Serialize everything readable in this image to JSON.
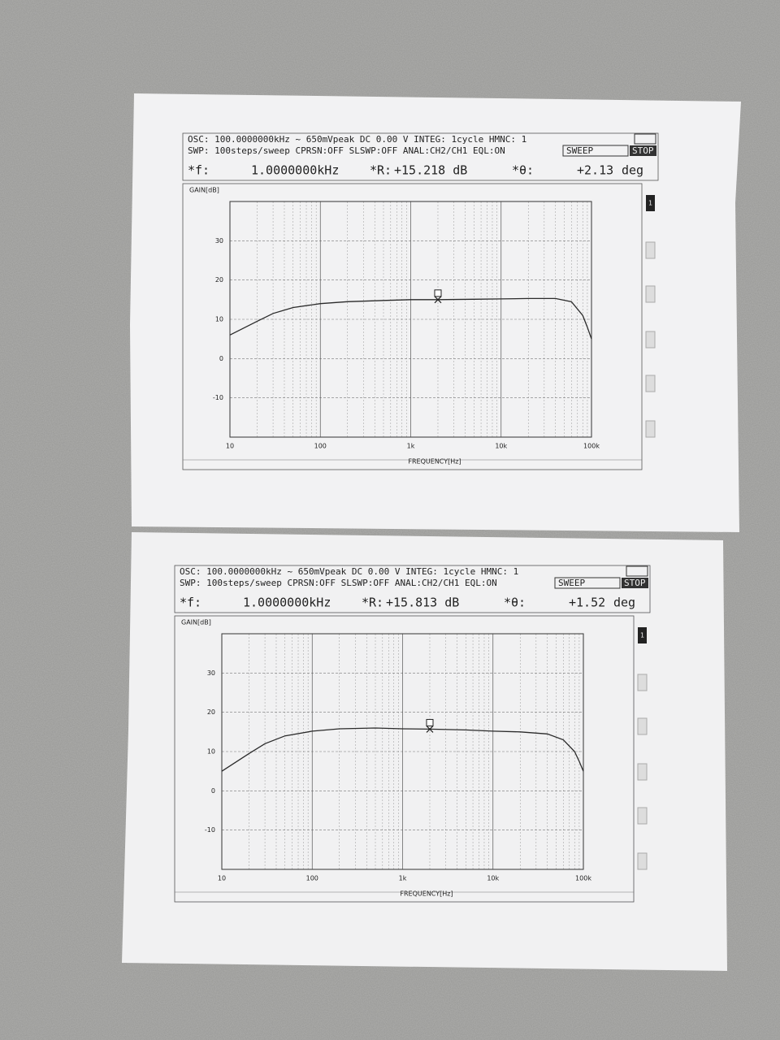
{
  "chart_data": [
    {
      "type": "line",
      "header": {
        "osc_line": "OSC:  100.0000000kHz  ~  650mVpeak DC  0.00 V  INTEG:   1cycle  HMNC: 1",
        "swp_line": "SWP:  100steps/sweep  CPRSN:OFF SLSWP:OFF ANAL:CH2/CH1 EQL:ON",
        "mode": "SWEEP",
        "state": "STOP",
        "f_label": "*f:",
        "f_value": "1.0000000kHz",
        "r_label": "*R:",
        "r_value": "+15.218 dB",
        "theta_label": "*θ:",
        "theta_value": "+2.13",
        "theta_unit": "deg"
      },
      "y_label": "GAIN[dB]",
      "x_label": "FREQUENCY[Hz]",
      "panel_label": "1",
      "log_x": true,
      "grid": true,
      "color": "#2a2a2a",
      "xlim": [
        10,
        100000
      ],
      "xticks": [
        10,
        100,
        {
          "value": 1000,
          "label": "1k"
        },
        {
          "value": 10000,
          "label": "10k"
        },
        {
          "value": 100000,
          "label": "100k"
        }
      ],
      "ylim": [
        -20,
        40
      ],
      "yticks": [
        -10,
        0,
        10,
        20,
        30
      ],
      "x": [
        10,
        20,
        30,
        50,
        100,
        200,
        500,
        1000,
        2000,
        5000,
        10000,
        20000,
        40000,
        60000,
        80000,
        90000,
        100000
      ],
      "values": [
        6,
        9.5,
        11.5,
        13,
        14,
        14.5,
        14.8,
        15,
        15,
        15.1,
        15.2,
        15.3,
        15.3,
        14.5,
        11,
        8,
        5
      ]
    },
    {
      "type": "line",
      "header": {
        "osc_line": "OSC:  100.0000000kHz  ~  650mVpeak DC  0.00 V  INTEG:   1cycle  HMNC: 1",
        "swp_line": "SWP:  100steps/sweep  CPRSN:OFF SLSWP:OFF ANAL:CH2/CH1 EQL:ON",
        "mode": "SWEEP",
        "state": "STOP",
        "f_label": "*f:",
        "f_value": "1.0000000kHz",
        "r_label": "*R:",
        "r_value": "+15.813 dB",
        "theta_label": "*θ:",
        "theta_value": "+1.52",
        "theta_unit": "deg"
      },
      "y_label": "GAIN[dB]",
      "x_label": "FREQUENCY[Hz]",
      "panel_label": "1",
      "log_x": true,
      "grid": true,
      "color": "#2a2a2a",
      "xlim": [
        10,
        100000
      ],
      "xticks": [
        10,
        100,
        {
          "value": 1000,
          "label": "1k"
        },
        {
          "value": 10000,
          "label": "10k"
        },
        {
          "value": 100000,
          "label": "100k"
        }
      ],
      "ylim": [
        -20,
        40
      ],
      "yticks": [
        -10,
        0,
        10,
        20,
        30
      ],
      "x": [
        10,
        20,
        30,
        50,
        100,
        200,
        500,
        1000,
        2000,
        5000,
        10000,
        20000,
        40000,
        60000,
        80000,
        90000,
        100000
      ],
      "values": [
        5,
        9.5,
        12,
        14,
        15.2,
        15.8,
        16,
        15.8,
        15.7,
        15.5,
        15.2,
        15,
        14.5,
        13,
        10,
        7.5,
        5
      ]
    }
  ]
}
